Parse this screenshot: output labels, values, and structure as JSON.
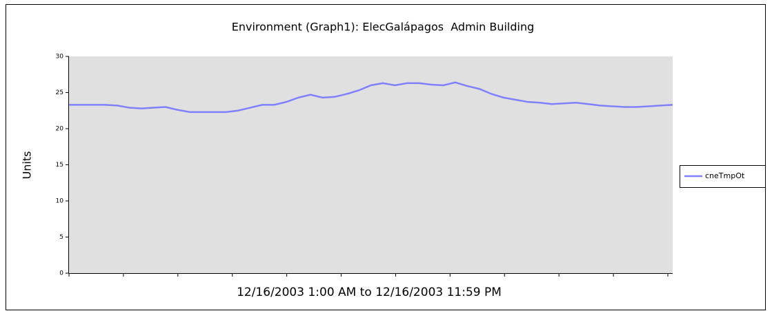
{
  "chart_data": {
    "type": "line",
    "title": "Environment (Graph1): ElecGalápagos  Admin Building",
    "ylabel": "Units",
    "xlabel": "12/16/2003 1:00 AM to 12/16/2003 11:59 PM",
    "series": [
      {
        "name": "cneTmpOt",
        "color": "#7f7fff",
        "values": [
          23.3,
          23.3,
          23.3,
          23.3,
          23.2,
          22.9,
          22.8,
          22.9,
          23.0,
          22.6,
          22.3,
          22.3,
          22.3,
          22.3,
          22.5,
          22.9,
          23.3,
          23.3,
          23.7,
          24.3,
          24.7,
          24.3,
          24.4,
          24.8,
          25.3,
          26.0,
          26.3,
          26.0,
          26.3,
          26.3,
          26.1,
          26.0,
          26.4,
          25.9,
          25.5,
          24.8,
          24.3,
          24.0,
          23.7,
          23.6,
          23.4,
          23.5,
          23.6,
          23.4,
          23.2,
          23.1,
          23.0,
          23.0,
          23.1,
          23.2,
          23.3
        ]
      }
    ],
    "ylim": [
      0,
      30
    ],
    "yticks": [
      0,
      5,
      10,
      15,
      20,
      25,
      30
    ],
    "legend": "right"
  }
}
